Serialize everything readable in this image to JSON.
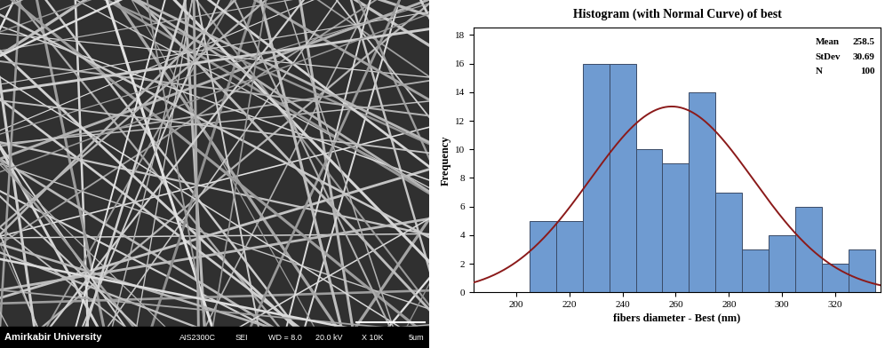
{
  "sem_image": {
    "caption": "Amirkabir University",
    "info": [
      "AIS2300C",
      "SEI",
      "WD = 8.0",
      "20.0 kV",
      "X 10K",
      "5um"
    ]
  },
  "chart_data": {
    "type": "histogram",
    "title": "Histogram (with Normal Curve) of best",
    "x_label": "fibers diameter - Best (nm)",
    "y_label": "Frequency",
    "bins": [
      205,
      215,
      225,
      235,
      245,
      255,
      265,
      275,
      285,
      295,
      305,
      315,
      325,
      335
    ],
    "values": [
      5,
      5,
      16,
      16,
      10,
      9,
      14,
      7,
      3,
      4,
      6,
      2,
      3
    ],
    "color": "#6f9bd1",
    "curve_color": "#8b1a1a",
    "stats": [
      {
        "label": "Mean",
        "value": 258.5
      },
      {
        "label": "StDev",
        "value": 30.69
      },
      {
        "label": "N",
        "value": 100
      }
    ],
    "xlim": [
      184,
      337
    ],
    "xticks": [
      200,
      220,
      240,
      260,
      280,
      300,
      320
    ],
    "ylim": [
      0,
      18.5
    ],
    "yticks": [
      0,
      2,
      4,
      6,
      8,
      10,
      12,
      14,
      16,
      18
    ],
    "grid": false
  }
}
